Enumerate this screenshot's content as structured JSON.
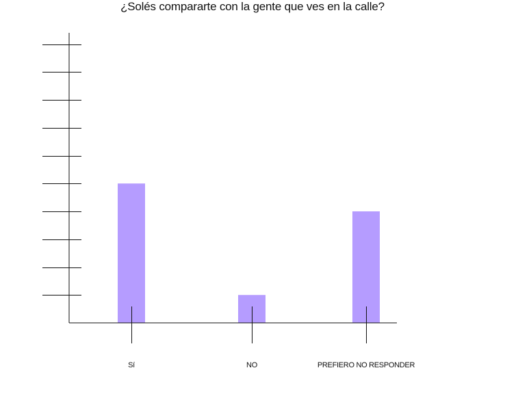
{
  "chart_data": {
    "type": "bar",
    "title": "¿Solés compararte con la gente que ves en la calle?",
    "categories": [
      "Sí",
      "NO",
      "PREFIERO NO RESPONDER"
    ],
    "values": [
      5,
      1,
      4
    ],
    "ylim": [
      0,
      10
    ],
    "ytick_count": 10,
    "ytick_labels_shown": false,
    "xlabel": "",
    "ylabel": "",
    "grid": false,
    "bar_color": "#b59cff",
    "axis_color": "#111111"
  }
}
